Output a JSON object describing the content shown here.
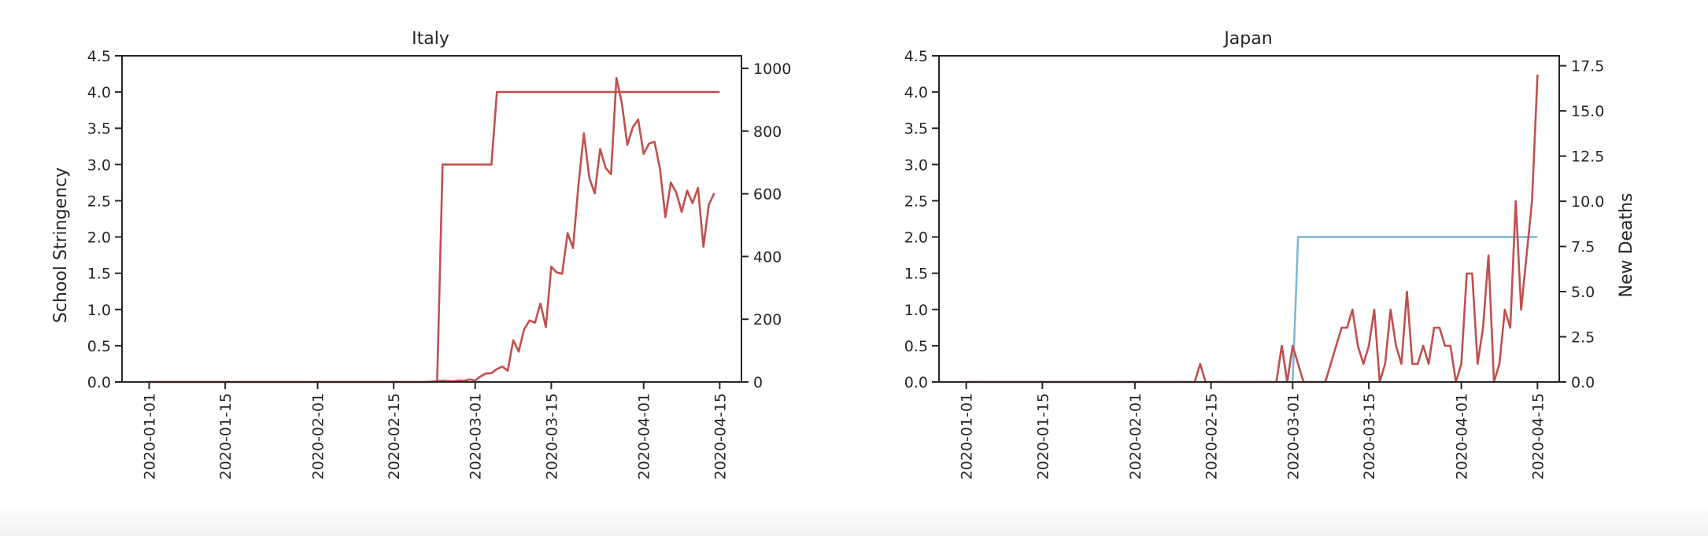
{
  "colors": {
    "stringency": "#c0504d",
    "deaths": "#c0504d",
    "stringency_japan": "#7fb8d4",
    "axis": "#262626"
  },
  "chart_data": [
    {
      "type": "line",
      "title": "Italy",
      "xlabel": "",
      "ylabel_left": "School Stringency",
      "ylabel_right": "",
      "x_ticks": [
        "2020-01-01",
        "2020-01-15",
        "2020-02-01",
        "2020-02-15",
        "2020-03-01",
        "2020-03-15",
        "2020-04-01",
        "2020-04-15"
      ],
      "xlim": [
        "2019-12-27",
        "2020-04-19"
      ],
      "ylim_left": [
        0,
        4.5
      ],
      "ylim_right": [
        0,
        1040
      ],
      "y_ticks_left": [
        "0.0",
        "0.5",
        "1.0",
        "1.5",
        "2.0",
        "2.5",
        "3.0",
        "3.5",
        "4.0",
        "4.5"
      ],
      "y_ticks_right": [
        "0",
        "200",
        "400",
        "600",
        "800",
        "1000"
      ],
      "series": [
        {
          "axis": "left",
          "color": "#c0504d",
          "points": [
            [
              "2020-01-01",
              0
            ],
            [
              "2020-02-23",
              0
            ],
            [
              "2020-02-24",
              3.0
            ],
            [
              "2020-03-04",
              3.0
            ],
            [
              "2020-03-05",
              4.0
            ],
            [
              "2020-04-15",
              4.0
            ]
          ]
        },
        {
          "axis": "right",
          "color": "#c0504d",
          "points": [
            [
              "2020-01-01",
              0
            ],
            [
              "2020-02-21",
              0
            ],
            [
              "2020-02-22",
              1
            ],
            [
              "2020-02-23",
              2
            ],
            [
              "2020-02-24",
              4
            ],
            [
              "2020-02-25",
              3
            ],
            [
              "2020-02-26",
              2
            ],
            [
              "2020-02-27",
              5
            ],
            [
              "2020-02-28",
              4
            ],
            [
              "2020-02-29",
              8
            ],
            [
              "2020-03-01",
              5
            ],
            [
              "2020-03-02",
              18
            ],
            [
              "2020-03-03",
              27
            ],
            [
              "2020-03-04",
              28
            ],
            [
              "2020-03-05",
              41
            ],
            [
              "2020-03-06",
              49
            ],
            [
              "2020-03-07",
              36
            ],
            [
              "2020-03-08",
              133
            ],
            [
              "2020-03-09",
              97
            ],
            [
              "2020-03-10",
              168
            ],
            [
              "2020-03-11",
              196
            ],
            [
              "2020-03-12",
              189
            ],
            [
              "2020-03-13",
              250
            ],
            [
              "2020-03-14",
              175
            ],
            [
              "2020-03-15",
              368
            ],
            [
              "2020-03-16",
              349
            ],
            [
              "2020-03-17",
              345
            ],
            [
              "2020-03-18",
              475
            ],
            [
              "2020-03-19",
              427
            ],
            [
              "2020-03-20",
              627
            ],
            [
              "2020-03-21",
              793
            ],
            [
              "2020-03-22",
              651
            ],
            [
              "2020-03-23",
              601
            ],
            [
              "2020-03-24",
              743
            ],
            [
              "2020-03-25",
              683
            ],
            [
              "2020-03-26",
              662
            ],
            [
              "2020-03-27",
              969
            ],
            [
              "2020-03-28",
              889
            ],
            [
              "2020-03-29",
              756
            ],
            [
              "2020-03-30",
              812
            ],
            [
              "2020-03-31",
              837
            ],
            [
              "2020-04-01",
              727
            ],
            [
              "2020-04-02",
              760
            ],
            [
              "2020-04-03",
              766
            ],
            [
              "2020-04-04",
              681
            ],
            [
              "2020-04-05",
              525
            ],
            [
              "2020-04-06",
              636
            ],
            [
              "2020-04-07",
              604
            ],
            [
              "2020-04-08",
              542
            ],
            [
              "2020-04-09",
              610
            ],
            [
              "2020-04-10",
              570
            ],
            [
              "2020-04-11",
              619
            ],
            [
              "2020-04-12",
              431
            ],
            [
              "2020-04-13",
              566
            ],
            [
              "2020-04-14",
              602
            ]
          ]
        }
      ]
    },
    {
      "type": "line",
      "title": "Japan",
      "xlabel": "",
      "ylabel_left": "",
      "ylabel_right": "New Deaths",
      "x_ticks": [
        "2020-01-01",
        "2020-01-15",
        "2020-02-01",
        "2020-02-15",
        "2020-03-01",
        "2020-03-15",
        "2020-04-01",
        "2020-04-15"
      ],
      "xlim": [
        "2019-12-27",
        "2020-04-19"
      ],
      "ylim_left": [
        0,
        4.5
      ],
      "ylim_right": [
        0,
        18.05
      ],
      "y_ticks_left": [
        "0.0",
        "0.5",
        "1.0",
        "1.5",
        "2.0",
        "2.5",
        "3.0",
        "3.5",
        "4.0",
        "4.5"
      ],
      "y_ticks_right": [
        "0.0",
        "2.5",
        "5.0",
        "7.5",
        "10.0",
        "12.5",
        "15.0",
        "17.5"
      ],
      "series": [
        {
          "axis": "left",
          "color": "#7fb8d4",
          "points": [
            [
              "2020-01-01",
              0
            ],
            [
              "2020-03-01",
              0
            ],
            [
              "2020-03-02",
              2.0
            ],
            [
              "2020-04-15",
              2.0
            ]
          ]
        },
        {
          "axis": "right",
          "color": "#c0504d",
          "points": [
            [
              "2020-01-01",
              0
            ],
            [
              "2020-02-12",
              0
            ],
            [
              "2020-02-13",
              1
            ],
            [
              "2020-02-14",
              0
            ],
            [
              "2020-02-27",
              0
            ],
            [
              "2020-02-28",
              2
            ],
            [
              "2020-02-29",
              0
            ],
            [
              "2020-03-01",
              2
            ],
            [
              "2020-03-02",
              1
            ],
            [
              "2020-03-03",
              0
            ],
            [
              "2020-03-07",
              0
            ],
            [
              "2020-03-08",
              1
            ],
            [
              "2020-03-09",
              2
            ],
            [
              "2020-03-10",
              3
            ],
            [
              "2020-03-11",
              3
            ],
            [
              "2020-03-12",
              4
            ],
            [
              "2020-03-13",
              2
            ],
            [
              "2020-03-14",
              1
            ],
            [
              "2020-03-15",
              2
            ],
            [
              "2020-03-16",
              4
            ],
            [
              "2020-03-17",
              0
            ],
            [
              "2020-03-18",
              1
            ],
            [
              "2020-03-19",
              4
            ],
            [
              "2020-03-20",
              2
            ],
            [
              "2020-03-21",
              1
            ],
            [
              "2020-03-22",
              5
            ],
            [
              "2020-03-23",
              1
            ],
            [
              "2020-03-24",
              1
            ],
            [
              "2020-03-25",
              2
            ],
            [
              "2020-03-26",
              1
            ],
            [
              "2020-03-27",
              3
            ],
            [
              "2020-03-28",
              3
            ],
            [
              "2020-03-29",
              2
            ],
            [
              "2020-03-30",
              2
            ],
            [
              "2020-03-31",
              0
            ],
            [
              "2020-04-01",
              1
            ],
            [
              "2020-04-02",
              6
            ],
            [
              "2020-04-03",
              6
            ],
            [
              "2020-04-04",
              1
            ],
            [
              "2020-04-05",
              3
            ],
            [
              "2020-04-06",
              7
            ],
            [
              "2020-04-07",
              0
            ],
            [
              "2020-04-08",
              1
            ],
            [
              "2020-04-09",
              4
            ],
            [
              "2020-04-10",
              3
            ],
            [
              "2020-04-11",
              10
            ],
            [
              "2020-04-12",
              4
            ],
            [
              "2020-04-13",
              7
            ],
            [
              "2020-04-14",
              10
            ],
            [
              "2020-04-15",
              17
            ]
          ]
        }
      ]
    }
  ]
}
